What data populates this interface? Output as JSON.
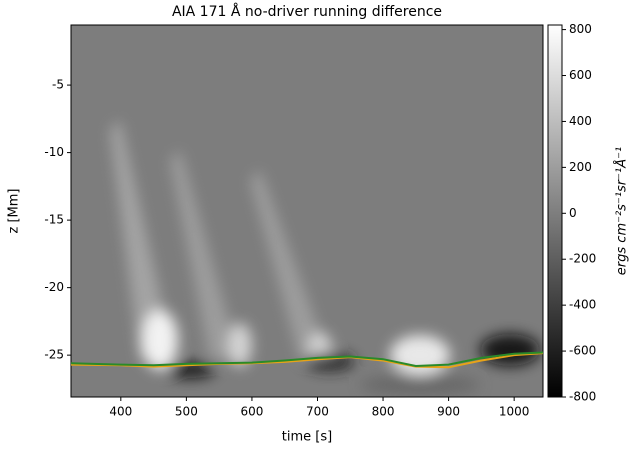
{
  "chart_data": {
    "type": "line",
    "title": "AIA 171 Å no-driver running difference",
    "xlabel": "time [s]",
    "ylabel": "z [Mm]",
    "colorbar_label": "ergs cm⁻²s⁻¹sr⁻¹Å⁻¹",
    "x": [
      324,
      400,
      450,
      500,
      550,
      600,
      650,
      700,
      750,
      800,
      850,
      900,
      950,
      1000,
      1044
    ],
    "series": [
      {
        "name": "orange",
        "color": "#e8a317",
        "values": [
          -25.7,
          -25.75,
          -25.85,
          -25.75,
          -25.65,
          -25.6,
          -25.5,
          -25.3,
          -25.15,
          -25.4,
          -25.85,
          -25.9,
          -25.4,
          -25.0,
          -24.85
        ]
      },
      {
        "name": "green",
        "color": "#2a8a2a",
        "values": [
          -25.6,
          -25.7,
          -25.75,
          -25.65,
          -25.6,
          -25.55,
          -25.4,
          -25.2,
          -25.1,
          -25.3,
          -25.8,
          -25.7,
          -25.2,
          -24.9,
          -24.8
        ]
      }
    ],
    "xlim": [
      324,
      1044
    ],
    "xticks": [
      400,
      500,
      600,
      700,
      800,
      900,
      1000
    ],
    "ylim": [
      -28.1,
      -0.55
    ],
    "yticks": [
      -5,
      -10,
      -15,
      -20,
      -25
    ],
    "clim": [
      -800,
      820
    ],
    "cticks": [
      800,
      600,
      400,
      200,
      0,
      -200,
      -400,
      -600,
      -800
    ]
  }
}
